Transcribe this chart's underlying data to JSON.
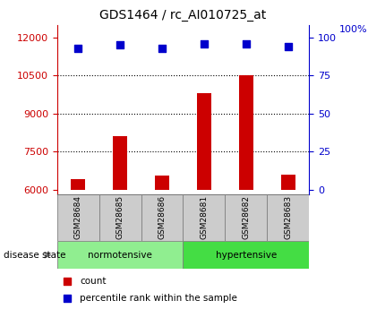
{
  "title": "GDS1464 / rc_AI010725_at",
  "samples": [
    "GSM28684",
    "GSM28685",
    "GSM28686",
    "GSM28681",
    "GSM28682",
    "GSM28683"
  ],
  "counts": [
    6400,
    8100,
    6550,
    9800,
    10500,
    6600
  ],
  "percentile_ranks": [
    93,
    95,
    93,
    96,
    96,
    94
  ],
  "ylim_left": [
    5800,
    12500
  ],
  "ylim_right": [
    -8.33,
    100
  ],
  "yticks_left": [
    6000,
    7500,
    9000,
    10500,
    12000
  ],
  "yticks_right": [
    0,
    25,
    50,
    75,
    100
  ],
  "groups": [
    {
      "label": "normotensive",
      "color": "#90EE90"
    },
    {
      "label": "hypertensive",
      "color": "#44DD44"
    }
  ],
  "bar_color": "#CC0000",
  "dot_color": "#0000CC",
  "bar_width": 0.35,
  "left_axis_color": "#CC0000",
  "right_axis_color": "#0000CC",
  "sample_box_color": "#CCCCCC",
  "disease_label": "disease state",
  "legend_count": "count",
  "legend_percentile": "percentile rank within the sample",
  "right_top_label": "100%"
}
